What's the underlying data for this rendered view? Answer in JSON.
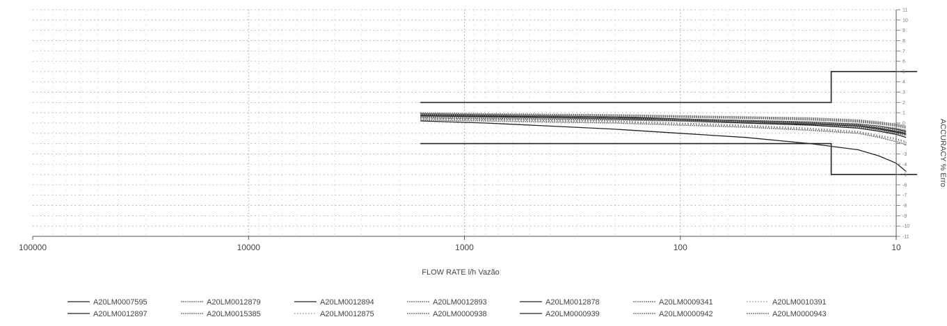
{
  "chart_data": {
    "type": "line",
    "title": "",
    "xlabel": "FLOW RATE l/h Vazão",
    "ylabel": "ACCURACY % Erro",
    "x_scale": "log",
    "x_reversed": true,
    "xlim": [
      100000,
      10
    ],
    "ylim": [
      -11,
      11
    ],
    "x_tick_labels": [
      "100000",
      "10000",
      "1000",
      "100",
      "10"
    ],
    "x_ticks": [
      100000,
      10000,
      1000,
      100,
      10
    ],
    "y_ticks": [
      11,
      10,
      9,
      8,
      7,
      6,
      5,
      4,
      3,
      2,
      1,
      0,
      -1,
      -2,
      -3,
      -4,
      -5,
      -6,
      -7,
      -8,
      -9,
      -10,
      -11
    ],
    "y_tick_labels": [
      "11",
      "10",
      "9",
      "8",
      "7",
      "6",
      "5",
      "4",
      "3",
      "2",
      "1",
      "0",
      "-1",
      "-2",
      "-3",
      "-4",
      "-5",
      "-6",
      "-7",
      "-8",
      "-9",
      "-10",
      "-11"
    ],
    "grid": true,
    "legend_position": "bottom",
    "limit_curves": {
      "upper": {
        "x": [
          1600,
          20,
          20,
          8
        ],
        "y": [
          2,
          2,
          5,
          5
        ]
      },
      "lower": {
        "x": [
          1600,
          20,
          20,
          8
        ],
        "y": [
          -2,
          -2,
          -5,
          -5
        ]
      }
    },
    "series": [
      {
        "name": "A20LM0007595",
        "style": "solid",
        "x": [
          1600,
          800,
          400,
          200,
          100,
          50,
          25,
          15,
          12,
          10,
          9
        ],
        "y": [
          0.9,
          0.8,
          0.7,
          0.6,
          0.4,
          0.2,
          0.0,
          -0.2,
          -0.5,
          -0.8,
          -1.0
        ]
      },
      {
        "name": "A20LM0012879",
        "style": "wavy",
        "x": [
          1600,
          800,
          400,
          200,
          100,
          50,
          25,
          15,
          12,
          10,
          9
        ],
        "y": [
          1.0,
          0.9,
          0.85,
          0.8,
          0.7,
          0.6,
          0.5,
          0.3,
          0.1,
          -0.1,
          -0.3
        ]
      },
      {
        "name": "A20LM0012894",
        "style": "solid",
        "x": [
          1600,
          800,
          400,
          200,
          100,
          50,
          25,
          15,
          12,
          10,
          9
        ],
        "y": [
          0.8,
          0.7,
          0.6,
          0.5,
          0.3,
          0.1,
          -0.1,
          -0.3,
          -0.6,
          -0.9,
          -1.1
        ]
      },
      {
        "name": "A20LM0012893",
        "style": "wavy",
        "x": [
          1600,
          800,
          400,
          200,
          100,
          50,
          25,
          15,
          12,
          10,
          9
        ],
        "y": [
          0.6,
          0.5,
          0.4,
          0.3,
          0.2,
          0.0,
          -0.2,
          -0.4,
          -0.7,
          -1.0,
          -1.2
        ]
      },
      {
        "name": "A20LM0012878",
        "style": "solid",
        "x": [
          1600,
          800,
          400,
          200,
          100,
          50,
          25,
          15,
          12,
          10,
          9
        ],
        "y": [
          0.7,
          0.6,
          0.5,
          0.4,
          0.2,
          0.0,
          -0.2,
          -0.5,
          -0.8,
          -1.1,
          -1.4
        ]
      },
      {
        "name": "A20LM0009341",
        "style": "wavy",
        "x": [
          1600,
          800,
          400,
          200,
          100,
          50,
          25,
          15,
          12,
          10,
          9
        ],
        "y": [
          0.5,
          0.4,
          0.35,
          0.3,
          0.2,
          0.1,
          0.0,
          -0.2,
          -0.4,
          -0.7,
          -0.9
        ]
      },
      {
        "name": "A20LM0010391",
        "style": "dotted",
        "x": [
          1600,
          800,
          400,
          200,
          100,
          50,
          25,
          15,
          12,
          10,
          9
        ],
        "y": [
          0.4,
          0.3,
          0.2,
          0.1,
          -0.1,
          -0.3,
          -0.6,
          -0.9,
          -1.3,
          -1.6,
          -1.9
        ]
      },
      {
        "name": "A20LM0012897",
        "style": "solid",
        "x": [
          1600,
          800,
          400,
          200,
          100,
          50,
          25,
          15,
          12,
          10,
          9
        ],
        "y": [
          0.2,
          0.0,
          -0.3,
          -0.6,
          -1.0,
          -1.4,
          -2.0,
          -2.6,
          -3.2,
          -3.9,
          -4.7
        ]
      },
      {
        "name": "A20LM0015385",
        "style": "wavy",
        "x": [
          1600,
          800,
          400,
          200,
          100,
          50,
          25,
          15,
          12,
          10,
          9
        ],
        "y": [
          0.3,
          0.2,
          0.1,
          0.0,
          -0.2,
          -0.4,
          -0.7,
          -1.0,
          -1.4,
          -1.8,
          -2.1
        ]
      },
      {
        "name": "A20LM0012875",
        "style": "dotted",
        "x": [
          1600,
          800,
          400,
          200,
          100,
          50,
          25,
          15,
          12,
          10,
          9
        ],
        "y": [
          0.5,
          0.4,
          0.3,
          0.2,
          0.0,
          -0.2,
          -0.5,
          -0.8,
          -1.2,
          -1.5,
          -1.8
        ]
      },
      {
        "name": "A20LM0000938",
        "style": "wavy",
        "x": [
          1600,
          800,
          400,
          200,
          100,
          50,
          25,
          15,
          12,
          10,
          9
        ],
        "y": [
          0.9,
          0.85,
          0.8,
          0.75,
          0.65,
          0.55,
          0.4,
          0.2,
          0.0,
          -0.2,
          -0.4
        ]
      },
      {
        "name": "A20LM0000939",
        "style": "solid",
        "x": [
          1600,
          800,
          400,
          200,
          100,
          50,
          25,
          15,
          12,
          10,
          9
        ],
        "y": [
          0.7,
          0.65,
          0.6,
          0.5,
          0.4,
          0.25,
          0.1,
          -0.1,
          -0.3,
          -0.6,
          -0.8
        ]
      },
      {
        "name": "A20LM0000942",
        "style": "wavy",
        "x": [
          1600,
          800,
          400,
          200,
          100,
          50,
          25,
          15,
          12,
          10,
          9
        ],
        "y": [
          0.8,
          0.75,
          0.7,
          0.65,
          0.55,
          0.45,
          0.3,
          0.1,
          -0.1,
          -0.3,
          -0.5
        ]
      },
      {
        "name": "A20LM0000943",
        "style": "wavy",
        "x": [
          1600,
          800,
          400,
          200,
          100,
          50,
          25,
          15,
          12,
          10,
          9
        ],
        "y": [
          0.6,
          0.55,
          0.5,
          0.45,
          0.35,
          0.25,
          0.1,
          -0.1,
          -0.3,
          -0.5,
          -0.7
        ]
      }
    ]
  }
}
